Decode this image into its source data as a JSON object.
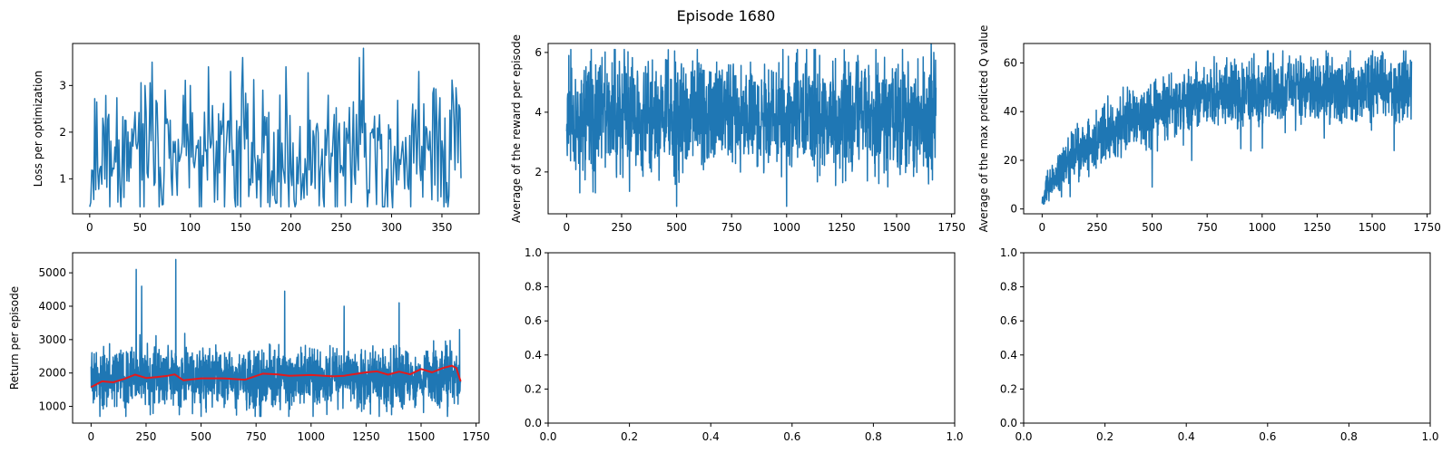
{
  "figure": {
    "suptitle": "Episode 1680"
  },
  "chart_data": [
    {
      "id": "loss",
      "type": "line",
      "title": "",
      "xlabel": "",
      "ylabel": "Loss per optimization",
      "xlim": [
        -17,
        387
      ],
      "ylim": [
        0.25,
        3.9
      ],
      "xticks": [
        0,
        50,
        100,
        150,
        200,
        250,
        300,
        350
      ],
      "yticks": [
        1,
        2,
        3
      ],
      "xtick_labels": [
        "0",
        "50",
        "100",
        "150",
        "200",
        "250",
        "300",
        "350"
      ],
      "ytick_labels": [
        "1",
        "2",
        "3"
      ],
      "grid": false,
      "series": [
        {
          "color": "#1f77b4",
          "gen": {
            "n": 370,
            "base": 1.5,
            "amp": 0.85,
            "min": 0.4,
            "max": 3.8,
            "seed": 11,
            "spikes": [
              [
                13,
                2.3
              ],
              [
                28,
                3.0
              ],
              [
                55,
                3.0
              ],
              [
                62,
                3.5
              ],
              [
                75,
                2.9
              ],
              [
                100,
                3.0
              ],
              [
                118,
                3.4
              ],
              [
                140,
                3.3
              ],
              [
                152,
                3.6
              ],
              [
                172,
                2.9
              ],
              [
                195,
                3.4
              ],
              [
                268,
                3.6
              ],
              [
                272,
                3.8
              ],
              [
                327,
                3.3
              ]
            ],
            "dips": [
              [
                28,
                0.5
              ],
              [
                73,
                0.45
              ],
              [
                124,
                0.5
              ],
              [
                210,
                0.55
              ],
              [
                296,
                0.4
              ],
              [
                301,
                0.38
              ],
              [
                340,
                0.55
              ]
            ]
          }
        }
      ]
    },
    {
      "id": "reward",
      "type": "line",
      "title": "",
      "xlabel": "",
      "ylabel": "Average of the reward per episode",
      "xlim": [
        -84,
        1764
      ],
      "ylim": [
        0.6,
        6.3
      ],
      "xticks": [
        0,
        250,
        500,
        750,
        1000,
        1250,
        1500,
        1750
      ],
      "yticks": [
        2,
        4,
        6
      ],
      "xtick_labels": [
        "0",
        "250",
        "500",
        "750",
        "1000",
        "1250",
        "1500",
        "1750"
      ],
      "ytick_labels": [
        "2",
        "4",
        "6"
      ],
      "grid": false,
      "series": [
        {
          "color": "#1f77b4",
          "gen": {
            "n": 1680,
            "base": 3.9,
            "amp": 1.0,
            "min": 1.3,
            "max": 6.1,
            "seed": 23,
            "spikes": [
              [
                10,
                5.9
              ],
              [
                1657,
                6.3
              ],
              [
                1669,
                6.0
              ]
            ],
            "dips": [
              [
                500,
                0.85
              ],
              [
                1000,
                0.85
              ],
              [
                60,
                1.3
              ],
              [
                1645,
                1.6
              ]
            ]
          }
        }
      ]
    },
    {
      "id": "qvalue",
      "type": "line",
      "title": "",
      "xlabel": "",
      "ylabel": "Average of the max predicted Q value",
      "xlim": [
        -84,
        1764
      ],
      "ylim": [
        -2,
        68
      ],
      "xticks": [
        0,
        250,
        500,
        750,
        1000,
        1250,
        1500,
        1750
      ],
      "yticks": [
        0,
        20,
        40,
        60
      ],
      "xtick_labels": [
        "0",
        "250",
        "500",
        "750",
        "1000",
        "1250",
        "1500",
        "1750"
      ],
      "ytick_labels": [
        "0",
        "20",
        "40",
        "60"
      ],
      "grid": false,
      "series": [
        {
          "color": "#1f77b4",
          "gen": {
            "n": 1680,
            "trend": "sat",
            "start": 5,
            "end": 50,
            "tau": 320,
            "amp": 7.5,
            "min": 2,
            "max": 65,
            "seed": 37,
            "spikes": [
              [
                1643,
                65
              ],
              [
                1300,
                64
              ]
            ],
            "dips": [
              [
                500,
                9
              ],
              [
                1600,
                24
              ]
            ]
          }
        }
      ]
    },
    {
      "id": "return",
      "type": "line",
      "title": "",
      "xlabel": "",
      "ylabel": "Return per episode",
      "xlim": [
        -84,
        1764
      ],
      "ylim": [
        500,
        5600
      ],
      "xticks": [
        0,
        250,
        500,
        750,
        1000,
        1250,
        1500,
        1750
      ],
      "yticks": [
        1000,
        2000,
        3000,
        4000,
        5000
      ],
      "xtick_labels": [
        "0",
        "250",
        "500",
        "750",
        "1000",
        "1250",
        "1500",
        "1750"
      ],
      "ytick_labels": [
        "1000",
        "2000",
        "3000",
        "4000",
        "5000"
      ],
      "grid": false,
      "series": [
        {
          "color": "#1f77b4",
          "gen": {
            "n": 1680,
            "base": 1850,
            "amp": 480,
            "min": 700,
            "max": 5400,
            "seed": 51,
            "spikes": [
              [
                205,
                5100
              ],
              [
                230,
                4600
              ],
              [
                385,
                5400
              ],
              [
                880,
                4450
              ],
              [
                1150,
                4000
              ],
              [
                1400,
                4100
              ],
              [
                1675,
                3300
              ]
            ],
            "dips": [
              [
                40,
                700
              ],
              [
                500,
                700
              ],
              [
                1620,
                700
              ]
            ]
          }
        },
        {
          "color": "#e41a1c",
          "points": [
            [
              0,
              1580
            ],
            [
              50,
              1750
            ],
            [
              100,
              1720
            ],
            [
              150,
              1820
            ],
            [
              200,
              1950
            ],
            [
              250,
              1850
            ],
            [
              300,
              1880
            ],
            [
              350,
              1920
            ],
            [
              380,
              1960
            ],
            [
              420,
              1780
            ],
            [
              500,
              1840
            ],
            [
              600,
              1840
            ],
            [
              700,
              1800
            ],
            [
              780,
              1980
            ],
            [
              850,
              1960
            ],
            [
              900,
              1920
            ],
            [
              1000,
              1940
            ],
            [
              1100,
              1900
            ],
            [
              1150,
              1920
            ],
            [
              1250,
              2020
            ],
            [
              1300,
              2050
            ],
            [
              1350,
              1950
            ],
            [
              1400,
              2040
            ],
            [
              1450,
              1960
            ],
            [
              1500,
              2120
            ],
            [
              1550,
              2020
            ],
            [
              1600,
              2150
            ],
            [
              1640,
              2220
            ],
            [
              1660,
              2150
            ],
            [
              1680,
              1750
            ]
          ]
        }
      ]
    },
    {
      "id": "empty1",
      "type": "line",
      "title": "",
      "xlabel": "",
      "ylabel": "",
      "xlim": [
        0,
        1
      ],
      "ylim": [
        0,
        1
      ],
      "xticks": [
        0,
        0.2,
        0.4,
        0.6,
        0.8,
        1.0
      ],
      "yticks": [
        0,
        0.2,
        0.4,
        0.6,
        0.8,
        1.0
      ],
      "xtick_labels": [
        "0.0",
        "0.2",
        "0.4",
        "0.6",
        "0.8",
        "1.0"
      ],
      "ytick_labels": [
        "0.0",
        "0.2",
        "0.4",
        "0.6",
        "0.8",
        "1.0"
      ],
      "grid": false,
      "series": []
    },
    {
      "id": "empty2",
      "type": "line",
      "title": "",
      "xlabel": "",
      "ylabel": "",
      "xlim": [
        0,
        1
      ],
      "ylim": [
        0,
        1
      ],
      "xticks": [
        0,
        0.2,
        0.4,
        0.6,
        0.8,
        1.0
      ],
      "yticks": [
        0,
        0.2,
        0.4,
        0.6,
        0.8,
        1.0
      ],
      "xtick_labels": [
        "0.0",
        "0.2",
        "0.4",
        "0.6",
        "0.8",
        "1.0"
      ],
      "ytick_labels": [
        "0.0",
        "0.2",
        "0.4",
        "0.6",
        "0.8",
        "1.0"
      ],
      "grid": false,
      "series": []
    }
  ]
}
